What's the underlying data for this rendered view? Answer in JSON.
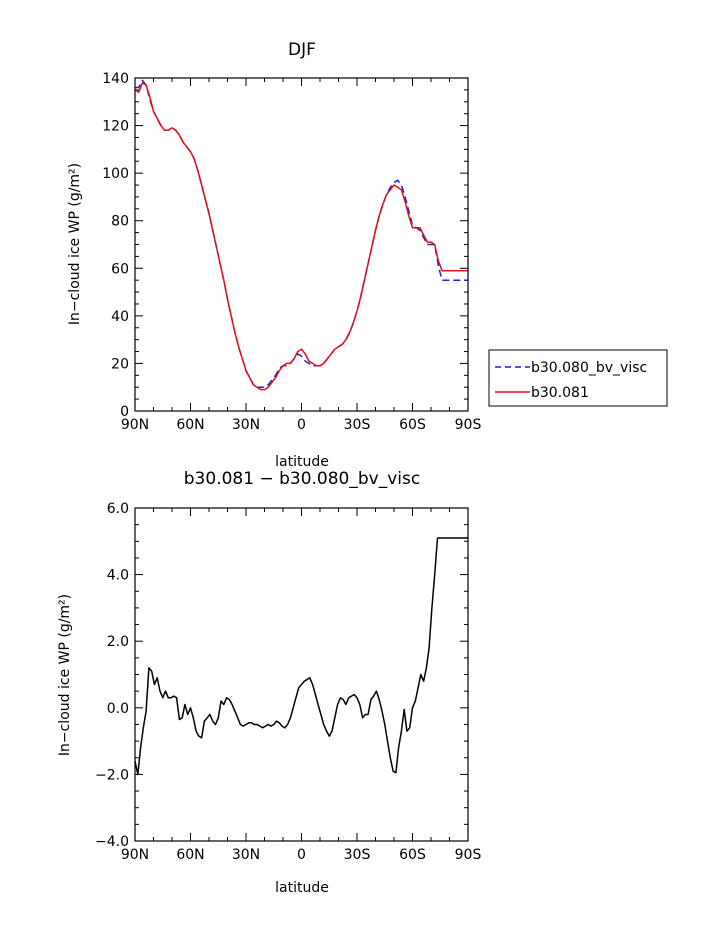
{
  "chart_data": [
    {
      "type": "line",
      "title": "DJF",
      "xlabel": "latitude",
      "ylabel": "In−cloud ice WP (g/m²)",
      "xlim": [
        90,
        -90
      ],
      "ylim": [
        0,
        140
      ],
      "xticks": [
        90,
        60,
        30,
        0,
        -30,
        -60,
        -90
      ],
      "xtick_labels": [
        "90N",
        "60N",
        "30N",
        "0",
        "30S",
        "60S",
        "90S"
      ],
      "yticks": [
        0,
        20,
        40,
        60,
        80,
        100,
        120,
        140
      ],
      "ytick_labels": [
        "0",
        "20",
        "40",
        "60",
        "80",
        "100",
        "120",
        "140"
      ],
      "grid": false,
      "legend_position": "right",
      "series": [
        {
          "name": "b30.080_bv_visc",
          "color": "#1f1fd0",
          "dash": "dashed",
          "x": [
            90,
            88,
            86,
            84,
            82,
            80,
            78,
            76,
            74,
            72,
            70,
            68,
            66,
            64,
            62,
            60,
            58,
            56,
            54,
            52,
            50,
            48,
            46,
            44,
            42,
            40,
            38,
            36,
            34,
            32,
            30,
            28,
            26,
            24,
            22,
            20,
            18,
            16,
            14,
            12,
            10,
            8,
            6,
            4,
            2,
            0,
            -2,
            -4,
            -6,
            -8,
            -10,
            -12,
            -14,
            -16,
            -18,
            -20,
            -22,
            -24,
            -26,
            -28,
            -30,
            -32,
            -34,
            -36,
            -38,
            -40,
            -42,
            -44,
            -46,
            -48,
            -50,
            -52,
            -54,
            -56,
            -58,
            -60,
            -62,
            -64,
            -66,
            -68,
            -70,
            -72,
            -74,
            -76,
            -78,
            -80,
            -82,
            -84,
            -86,
            -88,
            -90
          ],
          "y": [
            136,
            136,
            139,
            137,
            131,
            126,
            123,
            120,
            118,
            118,
            119,
            118,
            116,
            113,
            111,
            109,
            106,
            101,
            95,
            89,
            83,
            76,
            69,
            62,
            55,
            47,
            40,
            33,
            27,
            22,
            17,
            14,
            11,
            10,
            10,
            10,
            11,
            13,
            15,
            18,
            19,
            19,
            20,
            22,
            24,
            23,
            21,
            20,
            19,
            19,
            19,
            20,
            22,
            24,
            26,
            27,
            28,
            30,
            33,
            37,
            42,
            48,
            55,
            62,
            69,
            76,
            82,
            87,
            91,
            94,
            96,
            97,
            95,
            90,
            84,
            78,
            77,
            76,
            73,
            70,
            70,
            70,
            61,
            55,
            55,
            55,
            55,
            55,
            55,
            55,
            55
          ],
          "values_note": ""
        },
        {
          "name": "b30.081",
          "color": "#e0101a",
          "dash": "solid",
          "x": [
            90,
            88,
            86,
            84,
            82,
            80,
            78,
            76,
            74,
            72,
            70,
            68,
            66,
            64,
            62,
            60,
            58,
            56,
            54,
            52,
            50,
            48,
            46,
            44,
            42,
            40,
            38,
            36,
            34,
            32,
            30,
            28,
            26,
            24,
            22,
            20,
            18,
            16,
            14,
            12,
            10,
            8,
            6,
            4,
            2,
            0,
            -2,
            -4,
            -6,
            -8,
            -10,
            -12,
            -14,
            -16,
            -18,
            -20,
            -22,
            -24,
            -26,
            -28,
            -30,
            -32,
            -34,
            -36,
            -38,
            -40,
            -42,
            -44,
            -46,
            -48,
            -50,
            -52,
            -54,
            -56,
            -58,
            -60,
            -62,
            -64,
            -66,
            -68,
            -70,
            -72,
            -74,
            -76,
            -78,
            -80,
            -82,
            -84,
            -86,
            -88,
            -90
          ],
          "y": [
            135,
            134,
            138,
            137,
            132,
            126,
            123,
            120,
            118,
            118,
            119,
            118,
            116,
            113,
            111,
            109,
            106,
            101,
            95,
            89,
            83,
            76,
            69,
            62,
            55,
            47,
            40,
            33,
            27,
            22,
            17,
            14,
            11,
            10,
            9,
            9,
            10,
            12,
            14,
            17,
            19,
            20,
            20,
            22,
            25,
            26,
            24,
            21,
            20,
            19,
            19,
            20,
            22,
            24,
            26,
            27,
            28,
            30,
            33,
            37,
            42,
            48,
            55,
            62,
            69,
            76,
            82,
            87,
            91,
            93,
            95,
            94,
            93,
            88,
            82,
            77,
            77,
            77,
            74,
            71,
            71,
            70,
            63,
            59,
            59,
            59,
            59,
            59,
            59,
            59,
            59
          ]
        }
      ]
    },
    {
      "type": "line",
      "title": "b30.081 − b30.080_bv_visc",
      "xlabel": "latitude",
      "ylabel": "In−cloud ice WP (g/m²)",
      "xlim": [
        90,
        -90
      ],
      "ylim": [
        -4,
        6
      ],
      "xticks": [
        90,
        60,
        30,
        0,
        -30,
        -60,
        -90
      ],
      "xtick_labels": [
        "90N",
        "60N",
        "30N",
        "0",
        "30S",
        "60S",
        "90S"
      ],
      "yticks": [
        -4,
        -2,
        0,
        2,
        4,
        6
      ],
      "ytick_labels": [
        "−4.0",
        "−2.0",
        "0.0",
        "2.0",
        "4.0",
        "6.0"
      ],
      "grid": false,
      "series": [
        {
          "color": "#000000",
          "x": [
            90,
            88.5,
            87,
            85.5,
            84,
            82.5,
            81,
            79.5,
            78,
            76.5,
            75,
            73.5,
            72,
            70.5,
            69,
            67.5,
            66,
            64.5,
            63,
            61.5,
            60,
            58.5,
            57,
            55.5,
            54,
            52.5,
            51,
            49.5,
            48,
            46.5,
            45,
            43.5,
            42,
            40.5,
            39,
            37.5,
            36,
            34.5,
            33,
            31.5,
            30,
            28.5,
            27,
            25.5,
            24,
            22.5,
            21,
            19.5,
            18,
            16.5,
            15,
            13.5,
            12,
            10.5,
            9,
            7.5,
            6,
            4.5,
            3,
            1.5,
            0,
            -1.5,
            -3,
            -4.5,
            -6,
            -7.5,
            -9,
            -10.5,
            -12,
            -13.5,
            -15,
            -16.5,
            -18,
            -19.5,
            -21,
            -22.5,
            -24,
            -25.5,
            -27,
            -28.5,
            -30,
            -31.5,
            -33,
            -34.5,
            -36,
            -37.5,
            -39,
            -40.5,
            -42,
            -43.5,
            -45,
            -46.5,
            -48,
            -49.5,
            -51,
            -52.5,
            -54,
            -55.5,
            -57,
            -58.5,
            -60,
            -61.5,
            -63,
            -64.5,
            -66,
            -67.5,
            -69,
            -70.5,
            -72,
            -73.5,
            -75,
            -76.5,
            -78,
            -79.5,
            -81,
            -82.5,
            -84,
            -85.5,
            -87,
            -88.5,
            -90
          ],
          "y": [
            -1.6,
            -2.0,
            -1.2,
            -0.6,
            -0.1,
            1.2,
            1.1,
            0.7,
            0.9,
            0.5,
            0.3,
            0.5,
            0.3,
            0.3,
            0.35,
            0.3,
            -0.35,
            -0.3,
            0.1,
            -0.2,
            0.0,
            -0.3,
            -0.7,
            -0.85,
            -0.9,
            -0.4,
            -0.3,
            -0.2,
            -0.4,
            -0.5,
            -0.3,
            0.2,
            0.1,
            0.3,
            0.25,
            0.1,
            -0.1,
            -0.3,
            -0.5,
            -0.55,
            -0.5,
            -0.45,
            -0.45,
            -0.5,
            -0.5,
            -0.55,
            -0.6,
            -0.55,
            -0.5,
            -0.55,
            -0.5,
            -0.4,
            -0.45,
            -0.55,
            -0.6,
            -0.5,
            -0.3,
            0.0,
            0.3,
            0.6,
            0.7,
            0.8,
            0.85,
            0.9,
            0.7,
            0.4,
            0.1,
            -0.2,
            -0.5,
            -0.7,
            -0.85,
            -0.7,
            -0.3,
            0.1,
            0.3,
            0.25,
            0.1,
            0.3,
            0.35,
            0.4,
            0.3,
            0.1,
            -0.3,
            -0.2,
            -0.2,
            0.25,
            0.35,
            0.5,
            0.25,
            -0.1,
            -0.5,
            -1.0,
            -1.5,
            -1.9,
            -1.95,
            -1.2,
            -0.7,
            -0.05,
            -0.7,
            -0.6,
            0.0,
            0.2,
            0.6,
            1.0,
            0.8,
            1.2,
            1.8,
            3.0,
            4.0,
            5.1,
            5.1,
            5.1,
            5.1,
            5.1,
            5.1,
            5.1,
            5.1,
            5.1,
            5.1,
            5.1,
            5.1
          ]
        }
      ]
    }
  ]
}
